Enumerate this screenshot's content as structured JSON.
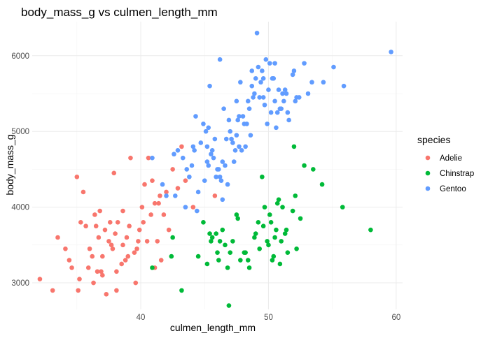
{
  "chart_data": {
    "type": "scatter",
    "title": "body_mass_g vs culmen_length_mm",
    "xlabel": "culmen_length_mm",
    "ylabel": "body_mass_g",
    "xlim": [
      31.5,
      60.5
    ],
    "ylim": [
      2650,
      6450
    ],
    "x_ticks": [
      40,
      50,
      60
    ],
    "y_ticks": [
      3000,
      4000,
      5000,
      6000
    ],
    "grid": true,
    "legend_position": "right",
    "legend_title": "species",
    "series": [
      {
        "name": "Adelie",
        "color": "#f8766d",
        "points": [
          [
            32.1,
            3050
          ],
          [
            33.1,
            2900
          ],
          [
            33.5,
            3600
          ],
          [
            34.6,
            3200
          ],
          [
            35.0,
            4400
          ],
          [
            35.1,
            2900
          ],
          [
            35.3,
            3800
          ],
          [
            35.5,
            4200
          ],
          [
            36.0,
            3450
          ],
          [
            36.3,
            3000
          ],
          [
            36.5,
            3750
          ],
          [
            36.6,
            3150
          ],
          [
            37.0,
            3350
          ],
          [
            37.3,
            2850
          ],
          [
            37.6,
            3800
          ],
          [
            38.1,
            3150
          ],
          [
            38.6,
            3950
          ],
          [
            38.8,
            3300
          ],
          [
            39.2,
            4650
          ],
          [
            39.5,
            3400
          ],
          [
            39.8,
            3550
          ],
          [
            40.2,
            3800
          ],
          [
            40.6,
            4650
          ],
          [
            41.1,
            4050
          ],
          [
            41.5,
            4150
          ],
          [
            42.0,
            4200
          ],
          [
            42.5,
            4500
          ],
          [
            43.2,
            4800
          ],
          [
            44.1,
            4000
          ],
          [
            45.8,
            4150
          ],
          [
            34.1,
            3450
          ],
          [
            34.4,
            3300
          ],
          [
            35.2,
            3050
          ],
          [
            35.7,
            3750
          ],
          [
            36.2,
            3350
          ],
          [
            36.9,
            3150
          ],
          [
            37.2,
            3700
          ],
          [
            37.5,
            3550
          ],
          [
            37.8,
            3450
          ],
          [
            38.2,
            3800
          ],
          [
            38.6,
            3500
          ],
          [
            38.9,
            3600
          ],
          [
            39.1,
            3750
          ],
          [
            39.6,
            3000
          ],
          [
            39.9,
            3700
          ],
          [
            40.3,
            4300
          ],
          [
            40.8,
            3900
          ],
          [
            41.3,
            3550
          ],
          [
            41.6,
            3300
          ],
          [
            42.2,
            3700
          ],
          [
            36.8,
            3950
          ],
          [
            37.9,
            4450
          ],
          [
            38.0,
            3650
          ],
          [
            37.0,
            3100
          ],
          [
            35.9,
            3200
          ],
          [
            36.4,
            3900
          ],
          [
            39.0,
            3350
          ],
          [
            38.5,
            3250
          ],
          [
            40.1,
            4000
          ],
          [
            40.5,
            3550
          ],
          [
            41.1,
            3200
          ],
          [
            41.8,
            3900
          ],
          [
            42.9,
            4250
          ],
          [
            43.5,
            4350
          ],
          [
            38.1,
            2900
          ],
          [
            39.7,
            3450
          ],
          [
            40.9,
            4350
          ],
          [
            41.4,
            4050
          ],
          [
            36.7,
            3600
          ],
          [
            37.7,
            3500
          ]
        ]
      },
      {
        "name": "Chinstrap",
        "color": "#00ba38",
        "points": [
          [
            40.9,
            3200
          ],
          [
            42.4,
            3350
          ],
          [
            42.5,
            3600
          ],
          [
            43.2,
            2900
          ],
          [
            45.2,
            3250
          ],
          [
            45.9,
            3650
          ],
          [
            46.0,
            3400
          ],
          [
            46.4,
            3700
          ],
          [
            46.9,
            2700
          ],
          [
            47.5,
            3900
          ],
          [
            48.1,
            3400
          ],
          [
            49.0,
            3650
          ],
          [
            49.6,
            3750
          ],
          [
            50.2,
            3800
          ],
          [
            50.7,
            4050
          ],
          [
            51.3,
            3650
          ],
          [
            52.0,
            4800
          ],
          [
            52.8,
            4550
          ],
          [
            53.5,
            4500
          ],
          [
            54.2,
            4300
          ],
          [
            55.8,
            4000
          ],
          [
            58.0,
            3700
          ],
          [
            45.5,
            3550
          ],
          [
            46.6,
            3500
          ],
          [
            47.0,
            3400
          ],
          [
            48.5,
            3200
          ],
          [
            49.3,
            3450
          ],
          [
            50.5,
            3600
          ],
          [
            51.5,
            3400
          ],
          [
            52.2,
            3450
          ],
          [
            45.6,
            3600
          ],
          [
            46.1,
            3300
          ],
          [
            46.8,
            3200
          ],
          [
            47.6,
            3850
          ],
          [
            48.4,
            3300
          ],
          [
            49.7,
            4000
          ],
          [
            50.0,
            3500
          ],
          [
            50.8,
            4100
          ],
          [
            51.0,
            3550
          ],
          [
            50.3,
            3300
          ],
          [
            49.2,
            3800
          ],
          [
            50.9,
            3250
          ],
          [
            51.9,
            3950
          ],
          [
            49.5,
            4400
          ],
          [
            50.6,
            3700
          ],
          [
            51.4,
            3700
          ],
          [
            52.1,
            4150
          ],
          [
            50.1,
            3900
          ],
          [
            45.4,
            3650
          ],
          [
            46.2,
            3550
          ],
          [
            44.5,
            3350
          ],
          [
            44.9,
            3800
          ],
          [
            47.2,
            3550
          ],
          [
            47.8,
            3300
          ],
          [
            48.2,
            3400
          ],
          [
            48.9,
            3600
          ],
          [
            49.9,
            3550
          ],
          [
            50.4,
            3350
          ],
          [
            51.1,
            4000
          ],
          [
            52.5,
            3850
          ]
        ]
      },
      {
        "name": "Gentoo",
        "color": "#619cff",
        "points": [
          [
            40.9,
            4650
          ],
          [
            41.7,
            4300
          ],
          [
            42.0,
            4150
          ],
          [
            42.6,
            4700
          ],
          [
            42.9,
            4750
          ],
          [
            43.3,
            4650
          ],
          [
            43.8,
            4400
          ],
          [
            44.2,
            4750
          ],
          [
            44.5,
            4200
          ],
          [
            44.9,
            5100
          ],
          [
            45.1,
            5000
          ],
          [
            45.2,
            4600
          ],
          [
            45.4,
            5600
          ],
          [
            45.5,
            4700
          ],
          [
            45.8,
            4900
          ],
          [
            46.1,
            4500
          ],
          [
            46.2,
            5950
          ],
          [
            46.4,
            4600
          ],
          [
            46.5,
            5300
          ],
          [
            46.8,
            4300
          ],
          [
            47.0,
            5000
          ],
          [
            47.3,
            4600
          ],
          [
            47.5,
            5400
          ],
          [
            47.7,
            4800
          ],
          [
            48.1,
            5100
          ],
          [
            48.2,
            4800
          ],
          [
            48.4,
            5400
          ],
          [
            48.5,
            5300
          ],
          [
            48.7,
            5600
          ],
          [
            49.1,
            6300
          ],
          [
            49.2,
            5850
          ],
          [
            49.4,
            5650
          ],
          [
            49.6,
            5450
          ],
          [
            49.8,
            5950
          ],
          [
            50.0,
            5550
          ],
          [
            50.2,
            5250
          ],
          [
            50.4,
            5700
          ],
          [
            50.5,
            5400
          ],
          [
            50.7,
            5250
          ],
          [
            50.8,
            5550
          ],
          [
            51.1,
            5500
          ],
          [
            51.3,
            5550
          ],
          [
            51.5,
            5250
          ],
          [
            52.1,
            5400
          ],
          [
            52.2,
            5450
          ],
          [
            53.1,
            5500
          ],
          [
            53.4,
            5650
          ],
          [
            54.3,
            5650
          ],
          [
            55.1,
            5850
          ],
          [
            55.9,
            5600
          ],
          [
            59.6,
            6050
          ],
          [
            42.7,
            4150
          ],
          [
            43.5,
            4000
          ],
          [
            44.4,
            3950
          ],
          [
            44.0,
            4550
          ],
          [
            45.0,
            4350
          ],
          [
            45.3,
            4550
          ],
          [
            45.6,
            4750
          ],
          [
            46.3,
            4350
          ],
          [
            46.6,
            4550
          ],
          [
            46.7,
            4900
          ],
          [
            46.9,
            5150
          ],
          [
            47.2,
            4850
          ],
          [
            47.4,
            4750
          ],
          [
            47.6,
            5150
          ],
          [
            47.8,
            5650
          ],
          [
            48.0,
            5200
          ],
          [
            48.6,
            4950
          ],
          [
            48.8,
            5450
          ],
          [
            49.0,
            5700
          ],
          [
            49.3,
            5450
          ],
          [
            49.5,
            5800
          ],
          [
            49.7,
            5350
          ],
          [
            49.9,
            5100
          ],
          [
            50.1,
            5900
          ],
          [
            50.3,
            5700
          ],
          [
            50.6,
            5050
          ],
          [
            50.9,
            5300
          ],
          [
            51.0,
            5300
          ],
          [
            51.2,
            5400
          ],
          [
            51.4,
            5500
          ],
          [
            51.6,
            5150
          ],
          [
            51.9,
            5750
          ],
          [
            52.0,
            5800
          ],
          [
            52.4,
            5450
          ],
          [
            52.8,
            5900
          ],
          [
            44.1,
            4800
          ],
          [
            44.7,
            4850
          ],
          [
            45.7,
            4650
          ],
          [
            46.0,
            4500
          ],
          [
            47.1,
            4900
          ],
          [
            47.9,
            4750
          ],
          [
            48.3,
            5100
          ],
          [
            48.9,
            5500
          ],
          [
            46.4,
            4100
          ],
          [
            46.2,
            4400
          ],
          [
            45.2,
            4800
          ],
          [
            43.6,
            4500
          ],
          [
            44.3,
            5200
          ],
          [
            45.3,
            5050
          ],
          [
            47.5,
            4950
          ],
          [
            48.7,
            5800
          ],
          [
            49.6,
            5700
          ],
          [
            50.5,
            5900
          ],
          [
            45.9,
            4400
          ],
          [
            47.7,
            5200
          ]
        ]
      }
    ]
  }
}
